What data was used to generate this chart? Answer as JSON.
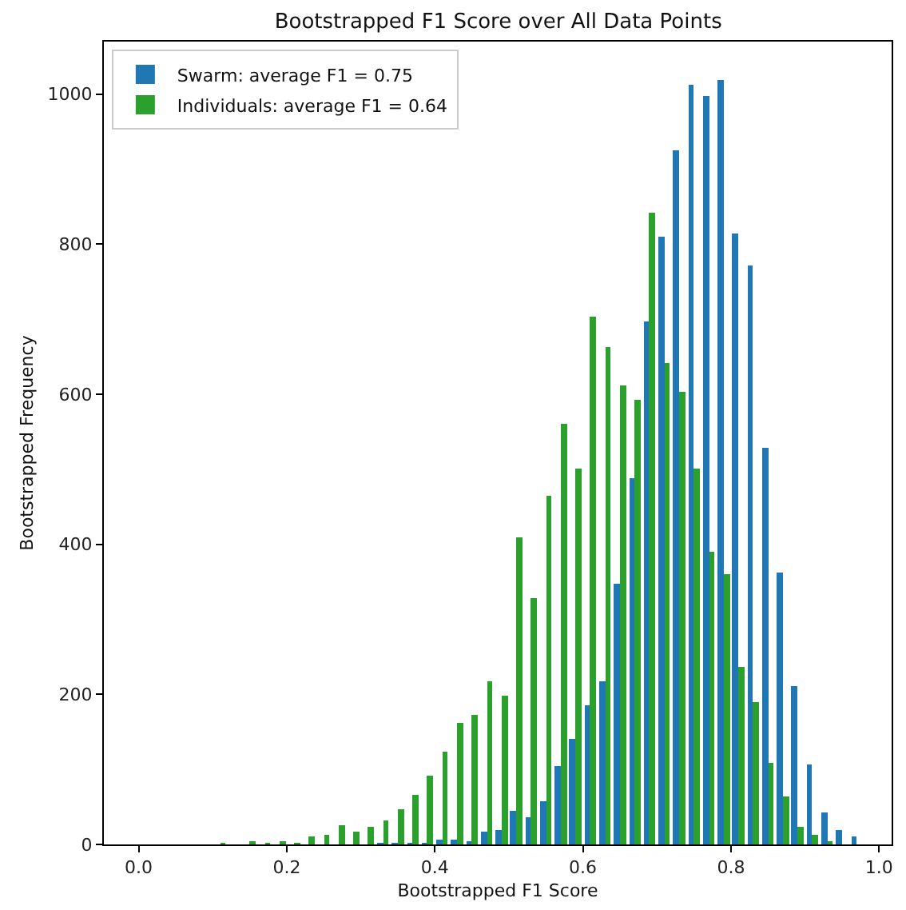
{
  "chart_data": {
    "type": "histogram",
    "title": "Bootstrapped F1 Score over All Data Points",
    "xlabel": "Bootstrapped F1 Score",
    "ylabel": "Bootstrapped Frequency",
    "bins": [
      0.0,
      0.02,
      0.04,
      0.06,
      0.08,
      0.1,
      0.12,
      0.14,
      0.16,
      0.18,
      0.2,
      0.22,
      0.24,
      0.26,
      0.28,
      0.3,
      0.32,
      0.34,
      0.36,
      0.38,
      0.4,
      0.42,
      0.44,
      0.46,
      0.48,
      0.5,
      0.52,
      0.54,
      0.56,
      0.58,
      0.6,
      0.62,
      0.64,
      0.66,
      0.68,
      0.7,
      0.72,
      0.74,
      0.76,
      0.78,
      0.8,
      0.82,
      0.84,
      0.86,
      0.88,
      0.9,
      0.92,
      0.94,
      0.96,
      0.98,
      1.0
    ],
    "series": [
      {
        "name": "Swarm: average F1 = 0.75",
        "color": "#1f77b4",
        "values": [
          0,
          0,
          0,
          0,
          0,
          0,
          0,
          0,
          0,
          0,
          0,
          0,
          0,
          0,
          0,
          0,
          1,
          1,
          1,
          1,
          7,
          7,
          5,
          16,
          19,
          44,
          37,
          58,
          104,
          140,
          186,
          217,
          347,
          488,
          696,
          809,
          926,
          1012,
          997,
          1019,
          814,
          772,
          529,
          363,
          211,
          106,
          42,
          20,
          11,
          0
        ]
      },
      {
        "name": "Individuals: average F1 = 0.64",
        "color": "#2ca02c",
        "values": [
          0,
          0,
          0,
          0,
          0,
          2,
          0,
          3,
          2,
          4,
          2,
          10,
          13,
          25,
          18,
          23,
          31,
          46,
          66,
          91,
          123,
          163,
          173,
          218,
          199,
          410,
          329,
          464,
          560,
          501,
          703,
          662,
          612,
          593,
          841,
          641,
          603,
          501,
          390,
          361,
          237,
          189,
          108,
          63,
          23,
          13,
          5,
          0,
          0,
          0
        ]
      }
    ],
    "xlim": [
      -0.047,
      1.017
    ],
    "xticks": [
      {
        "value": 0.0,
        "label": "0.0"
      },
      {
        "value": 0.2,
        "label": "0.2"
      },
      {
        "value": 0.4,
        "label": "0.4"
      },
      {
        "value": 0.6,
        "label": "0.6"
      },
      {
        "value": 0.8,
        "label": "0.8"
      },
      {
        "value": 1.0,
        "label": "1.0"
      }
    ],
    "ylim": [
      0,
      1070
    ],
    "yticks": [
      0,
      200,
      400,
      600,
      800,
      1000
    ],
    "legend": "top left"
  }
}
